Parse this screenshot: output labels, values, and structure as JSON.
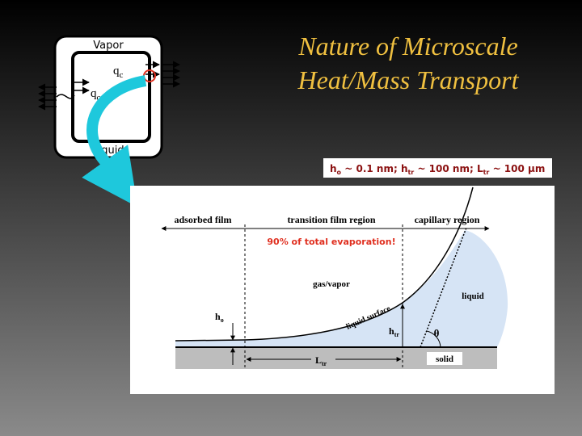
{
  "title": {
    "line1": "Nature of Microscale",
    "line2": "Heat/Mass Transport"
  },
  "inset": {
    "top_label": "Vapor",
    "bottom_label": "Liquid",
    "flux_labels": [
      {
        "symbol": "q",
        "sub": "c"
      },
      {
        "symbol": "q",
        "sub": "c"
      }
    ]
  },
  "scales": [
    {
      "symbol": "h",
      "sub": "o",
      "value": "~ 0.1 nm;"
    },
    {
      "symbol": "h",
      "sub": "tr",
      "value": "~ 100 nm;"
    },
    {
      "symbol": "L",
      "sub": "tr",
      "value": "~ 100 μm"
    }
  ],
  "diagram": {
    "regions": [
      "adsorbed film",
      "transition film region",
      "capillary region"
    ],
    "note": "90% of total evaporation!",
    "gas_label": "gas/vapor",
    "liquid_label": "liquid",
    "surface_label": "liquid surface",
    "h_o": {
      "symbol": "h",
      "sub": "o"
    },
    "h_tr": {
      "symbol": "h",
      "sub": "tr"
    },
    "L_tr": {
      "symbol": "L",
      "sub": "tr"
    },
    "angle": "θ",
    "solid_label": "solid"
  }
}
